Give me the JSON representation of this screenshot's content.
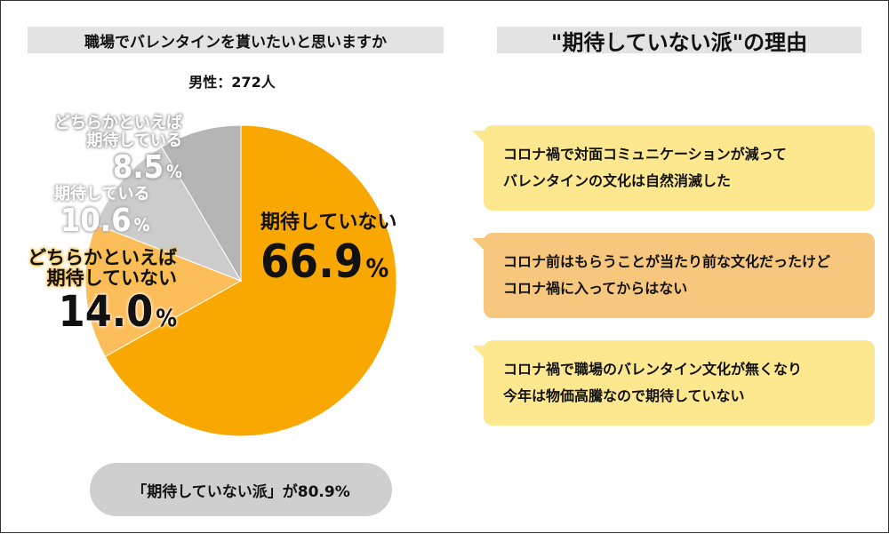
{
  "left_panel": {
    "question": "職場でバレンタインを貰いたいと思いますか",
    "sample": "男性：272人",
    "summary": "「期待していない派」が80.9%"
  },
  "right_panel": {
    "title": "\"期待していない派\"の理由",
    "reasons": [
      {
        "line1": "コロナ禍で対面コミュニケーションが減って",
        "line2": "バレンタインの文化は自然消滅した"
      },
      {
        "line1": "コロナ前はもらうことが当たり前な文化だったけど",
        "line2": "コロナ禍に入ってからはない"
      },
      {
        "line1": "コロナ禍で職場のバレンタイン文化が無くなり",
        "line2": "今年は物価高騰なので期待していない"
      }
    ]
  },
  "chart_data": {
    "type": "pie",
    "title": "職場でバレンタインを貰いたいと思いますか",
    "unit": "%",
    "slices": [
      {
        "label": "期待していない",
        "value": 66.9,
        "value_text": "66.9",
        "color": "#f8a800"
      },
      {
        "label": "どちらかといえば 期待していない",
        "label_line1": "どちらかといえば",
        "label_line2": "期待していない",
        "value": 14.0,
        "value_text": "14.0",
        "color": "#fcbd5b"
      },
      {
        "label": "期待している",
        "value": 10.6,
        "value_text": "10.6",
        "color": "#cccccc"
      },
      {
        "label": "どちらかといえば 期待している",
        "label_line1": "どちらかといえば",
        "label_line2": "期待している",
        "value": 8.5,
        "value_text": "8.5",
        "color": "#b5b5b5"
      }
    ],
    "start": "top",
    "direction": "clockwise"
  }
}
